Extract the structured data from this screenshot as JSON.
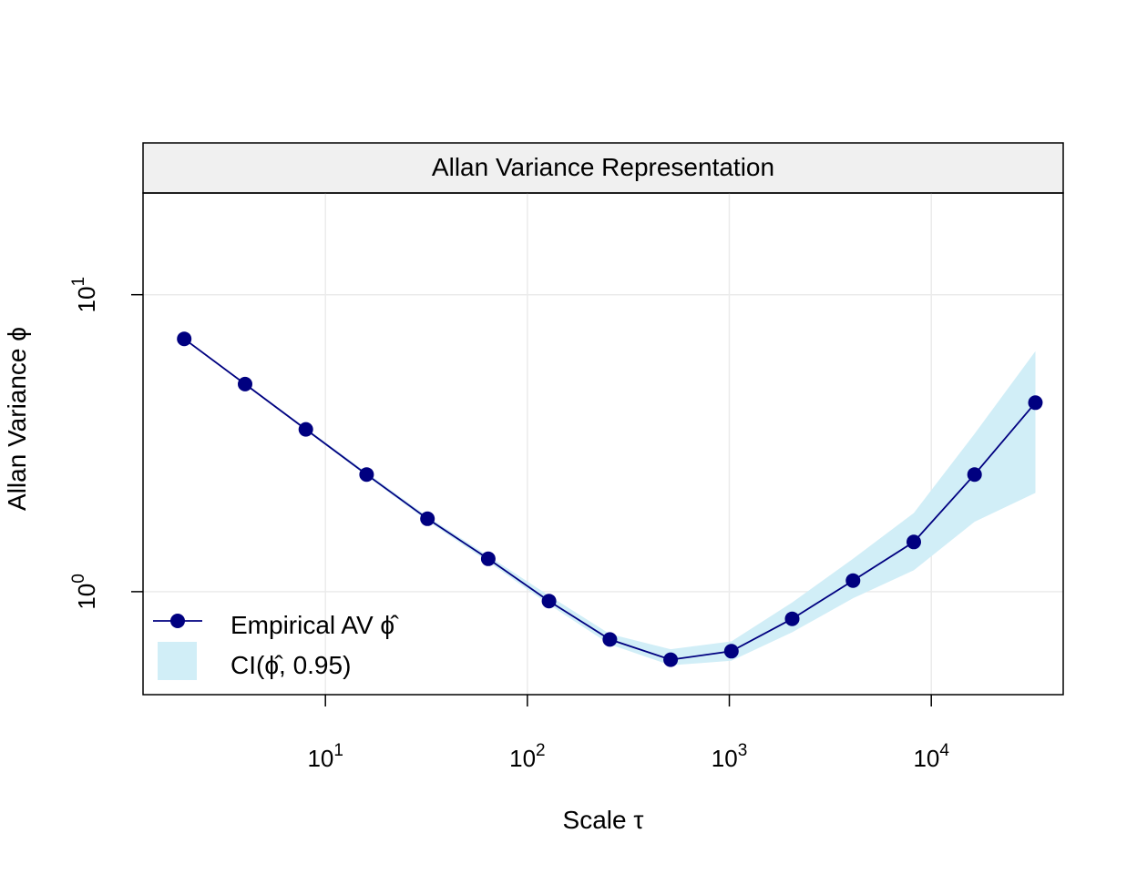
{
  "chart_data": {
    "type": "line",
    "title": "Allan Variance Representation",
    "xlabel": "Scale τ",
    "ylabel": "Allan Variance ϕ",
    "x_scale": "log10",
    "y_scale": "log10",
    "xlim": [
      1.25,
      45000
    ],
    "ylim": [
      0.45,
      22
    ],
    "x_ticks": [
      {
        "value": 10,
        "base": "10",
        "exp": "1"
      },
      {
        "value": 100,
        "base": "10",
        "exp": "2"
      },
      {
        "value": 1000,
        "base": "10",
        "exp": "3"
      },
      {
        "value": 10000,
        "base": "10",
        "exp": "4"
      }
    ],
    "y_ticks": [
      {
        "value": 1,
        "base": "10",
        "exp": "0"
      },
      {
        "value": 10,
        "base": "10",
        "exp": "1"
      }
    ],
    "grid": true,
    "legend_position": "bottom-left",
    "legend": {
      "line_label": "Empirical AV",
      "line_symbol": "ϕ̂",
      "band_label_prefix": "CI(",
      "band_symbol": "ϕ̂",
      "band_label_suffix": ", 0.95)"
    },
    "series": [
      {
        "name": "Empirical AV",
        "color": "#000080",
        "x": [
          2,
          4,
          8,
          16,
          32,
          64,
          128,
          256,
          512,
          1024,
          2048,
          4096,
          8192,
          16384,
          32768
        ],
        "y": [
          7.1,
          5.0,
          3.52,
          2.48,
          1.76,
          1.29,
          0.93,
          0.69,
          0.59,
          0.63,
          0.81,
          1.09,
          1.47,
          2.48,
          4.33
        ],
        "lower": [
          7.05,
          4.96,
          3.49,
          2.45,
          1.73,
          1.26,
          0.905,
          0.665,
          0.565,
          0.585,
          0.73,
          0.95,
          1.18,
          1.72,
          2.15
        ],
        "upper": [
          7.15,
          5.04,
          3.56,
          2.52,
          1.79,
          1.32,
          0.97,
          0.72,
          0.64,
          0.68,
          0.92,
          1.29,
          1.84,
          3.4,
          6.45
        ]
      }
    ],
    "band_color": "#d1eef7"
  }
}
